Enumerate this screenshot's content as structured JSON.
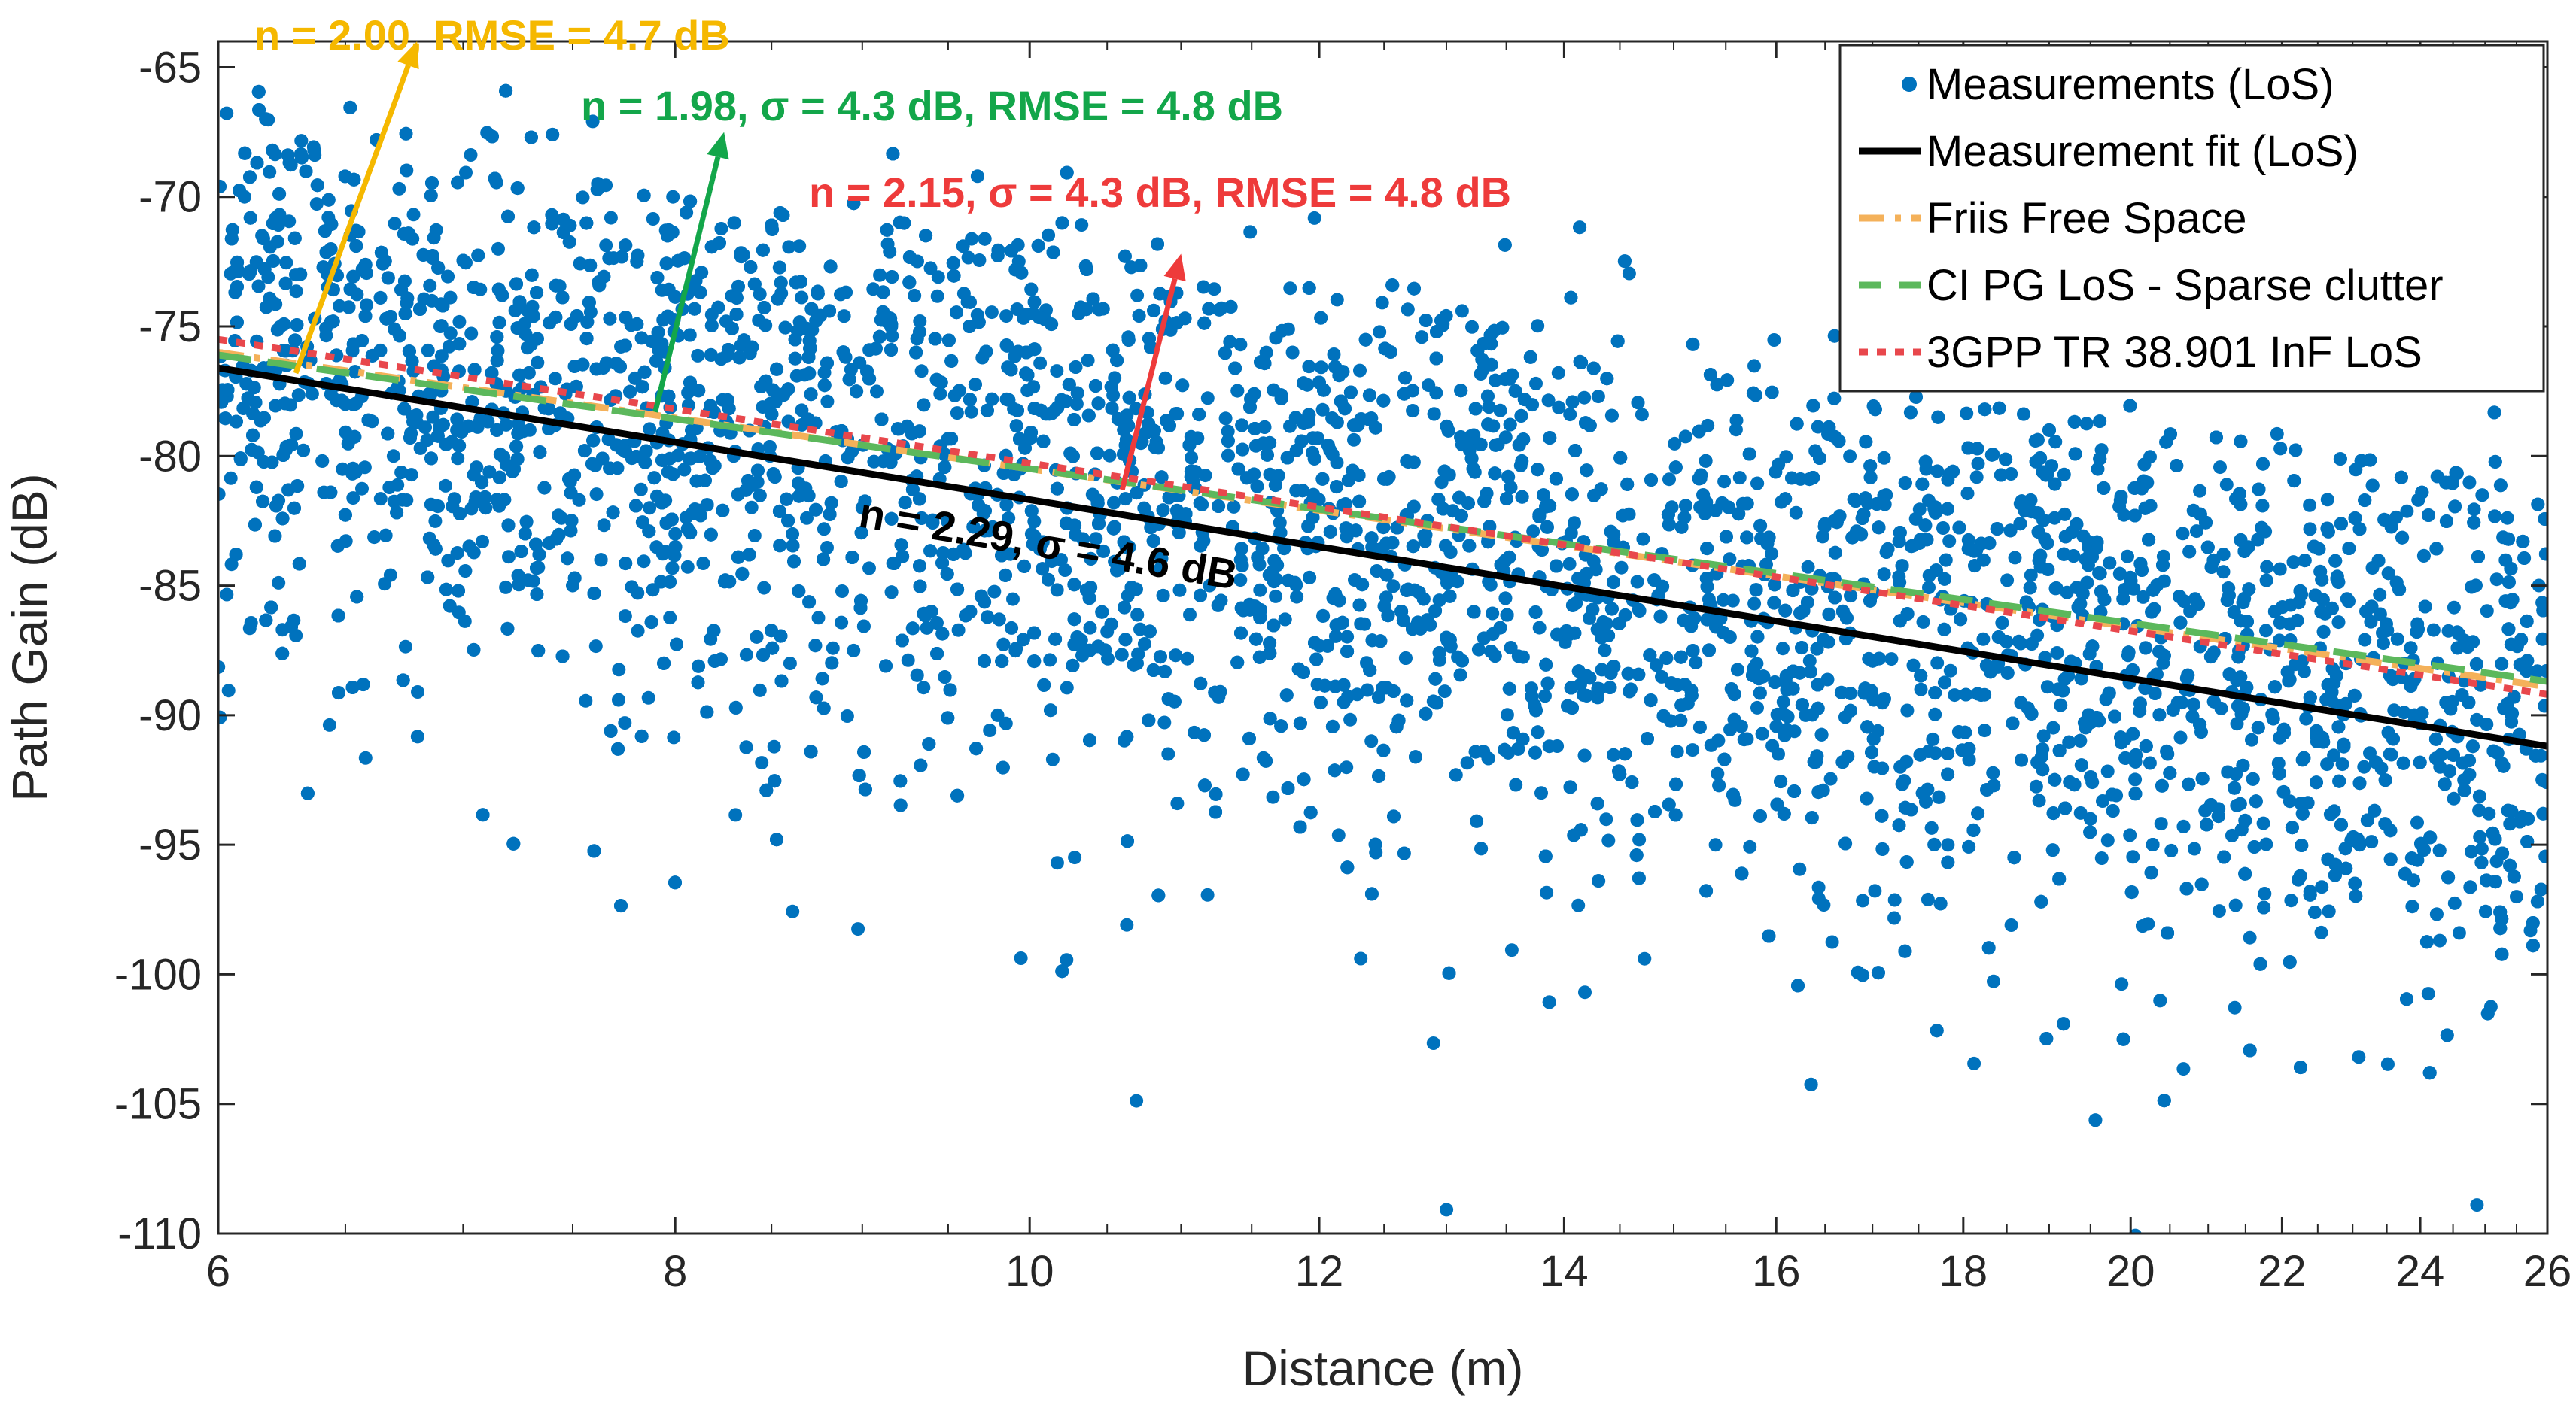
{
  "chart_data": {
    "type": "scatter",
    "xscale": "log",
    "xlabel": "Distance (m)",
    "ylabel": "Path Gain (dB)",
    "xlim": [
      6,
      26
    ],
    "ylim": [
      -110,
      -64
    ],
    "xticks": [
      6,
      8,
      10,
      12,
      14,
      16,
      18,
      20,
      22,
      24,
      26
    ],
    "yticks": [
      -65,
      -70,
      -75,
      -80,
      -85,
      -90,
      -95,
      -100,
      -105,
      -110
    ],
    "grid": false,
    "legend_position": "top-right",
    "series": [
      {
        "name": "Measurements (LoS)",
        "kind": "scatter",
        "color": "#0072BD",
        "points": [
          [
            6.1,
            -70
          ],
          [
            6.3,
            -73
          ],
          [
            6.5,
            -78
          ],
          [
            6.7,
            -80
          ],
          [
            6.9,
            -75
          ],
          [
            7.1,
            -82
          ],
          [
            7.3,
            -79
          ],
          [
            7.5,
            -85
          ],
          [
            7.8,
            -77
          ],
          [
            8.0,
            -83
          ],
          [
            8.3,
            -80
          ],
          [
            8.6,
            -88
          ],
          [
            9.0,
            -82
          ],
          [
            9.4,
            -86
          ],
          [
            9.8,
            -90
          ],
          [
            10.2,
            -84
          ],
          [
            10.7,
            -88
          ],
          [
            11.2,
            -85
          ],
          [
            11.8,
            -76
          ],
          [
            12.4,
            -91
          ],
          [
            13.0,
            -87
          ],
          [
            13.8,
            -93
          ],
          [
            14.6,
            -89
          ],
          [
            15.4,
            -95
          ],
          [
            16.3,
            -90
          ],
          [
            17.3,
            -92
          ],
          [
            18.4,
            -88
          ],
          [
            19.5,
            -94
          ],
          [
            20.7,
            -89
          ],
          [
            21.9,
            -86
          ],
          [
            23.1,
            -95
          ],
          [
            24.3,
            -92
          ],
          [
            25.5,
            -97
          ]
        ]
      },
      {
        "name": "Measurement fit (LoS)",
        "kind": "line",
        "style": "solid",
        "color": "#000000",
        "endpoints": [
          [
            6,
            -76.6
          ],
          [
            26,
            -91.2
          ]
        ]
      },
      {
        "name": "Friis Free Space",
        "kind": "line",
        "style": "dash-dot",
        "color": "#F4B15A",
        "endpoints": [
          [
            6,
            -76.0
          ],
          [
            26,
            -88.9
          ]
        ]
      },
      {
        "name": "CI PG LoS - Sparse clutter",
        "kind": "line",
        "style": "dashed",
        "color": "#5CB85C",
        "endpoints": [
          [
            6,
            -76.1
          ],
          [
            26,
            -88.7
          ]
        ]
      },
      {
        "name": "3GPP TR 38.901 InF LoS",
        "kind": "line",
        "style": "dotted",
        "color": "#E8474C",
        "endpoints": [
          [
            6,
            -75.5
          ],
          [
            26,
            -89.2
          ]
        ]
      }
    ],
    "annotations": [
      {
        "text": "n = 2.00, RMSE = 4.7 dB",
        "color": "#F5B800",
        "anchor": [
          6.3,
          -76.8
        ],
        "tip": [
          6.8,
          -64.0
        ]
      },
      {
        "text": "n = 1.98, σ = 4.3 dB,  RMSE = 4.8 dB",
        "color": "#13A64A",
        "anchor": [
          7.9,
          -78.3
        ],
        "tip": [
          8.25,
          -67.5
        ]
      },
      {
        "text": "n = 2.15, σ = 4.3 dB, RMSE = 4.8 dB",
        "color": "#EE3B3B",
        "anchor": [
          10.6,
          -81.3
        ],
        "tip": [
          11.0,
          -72.2
        ]
      },
      {
        "text": "n = 2.29, σ = 4.6 dB",
        "color": "#000000"
      }
    ]
  }
}
